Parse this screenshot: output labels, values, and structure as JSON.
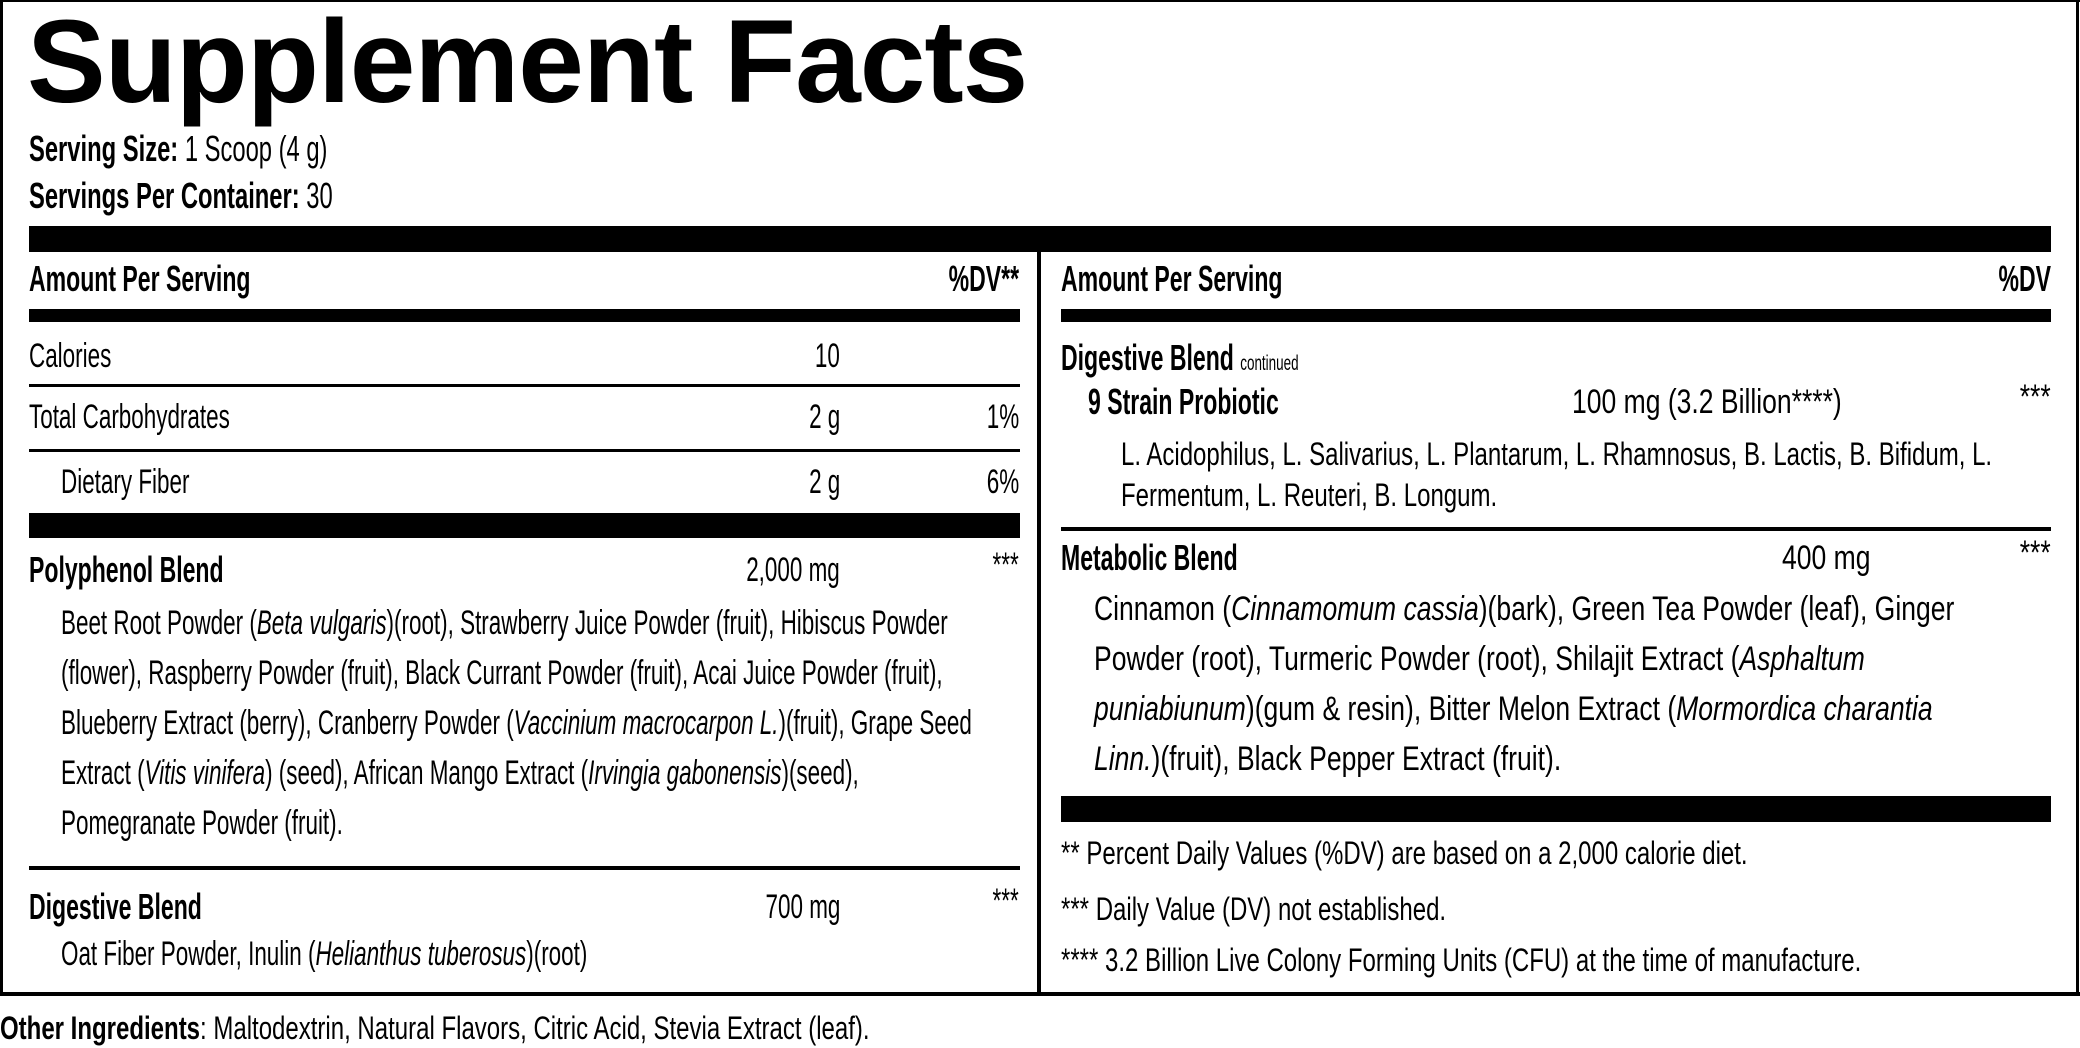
{
  "title": "Supplement Facts",
  "serving": {
    "size_label": "Serving Size:",
    "size_value": " 1 Scoop (4 g)",
    "per_container_label": "Servings Per Container:",
    "per_container_value": " 30"
  },
  "left": {
    "header_amount": "Amount Per Serving",
    "header_dv": "%DV**",
    "nutrients": [
      {
        "name": "Calories",
        "amount": "10",
        "dv": ""
      },
      {
        "name": "Total Carbohydrates",
        "amount": "2 g",
        "dv": "1%"
      },
      {
        "name": "Dietary Fiber",
        "amount": "2 g",
        "dv": "6%"
      }
    ],
    "polyphenol": {
      "name": "Polyphenol Blend",
      "amount": "2,000 mg",
      "dv": "***",
      "ingredients": [
        {
          "t": "Beet Root Powder ("
        },
        {
          "t": "Beta vulgaris",
          "i": true
        },
        {
          "t": ")(root), Strawberry Juice Powder (fruit), Hibiscus Powder (flower), Raspberry Powder (fruit), Black Currant Powder (fruit), Acai Juice Powder (fruit), Blueberry Extract (berry), Cranberry Powder ("
        },
        {
          "t": "Vaccinium macrocarpon L.",
          "i": true
        },
        {
          "t": ")(fruit), Grape Seed Extract ("
        },
        {
          "t": "Vitis vinifera",
          "i": true
        },
        {
          "t": ")  (seed), African Mango Extract ("
        },
        {
          "t": "Irvingia gabonensis",
          "i": true
        },
        {
          "t": ")(seed), Pomegranate Powder (fruit)."
        }
      ]
    },
    "digestive": {
      "name": "Digestive Blend",
      "amount": "700 mg",
      "dv": "***",
      "ingredients": [
        {
          "t": "Oat Fiber Powder, Inulin ("
        },
        {
          "t": "Helianthus tuberosus",
          "i": true
        },
        {
          "t": ")(root)"
        }
      ]
    }
  },
  "right": {
    "header_amount": "Amount Per Serving",
    "header_dv": "%DV",
    "digestive_cont": {
      "name": "Digestive Blend",
      "note": "continued"
    },
    "probiotic": {
      "name": "9 Strain Probiotic",
      "amount": "100 mg (3.2 Billion****)",
      "dv": "***",
      "ingredients": [
        {
          "t": "L. Acidophilus, L. Salivarius, L. Plantarum, L. Rhamnosus, B. Lactis, B. Bifidum, L. Fermentum, L. Reuteri, B. Longum."
        }
      ]
    },
    "metabolic": {
      "name": "Metabolic Blend",
      "amount": "400 mg",
      "dv": "***",
      "ingredients": [
        {
          "t": "Cinnamon ("
        },
        {
          "t": "Cinnamomum cassia",
          "i": true
        },
        {
          "t": ")(bark), Green Tea Powder (leaf), Ginger Powder (root), Turmeric Powder (root), Shilajit Extract ("
        },
        {
          "t": "Asphaltum puniabiunum",
          "i": true
        },
        {
          "t": ")(gum & resin), Bitter Melon Extract ("
        },
        {
          "t": "Mormordica charantia Linn.",
          "i": true
        },
        {
          "t": ")(fruit), Black Pepper Extract (fruit)."
        }
      ]
    },
    "footnotes": [
      "** Percent Daily Values (%DV) are based on a 2,000 calorie diet.",
      "*** Daily Value (DV) not established.",
      "**** 3.2 Billion Live Colony Forming Units (CFU) at the time of manufacture."
    ]
  },
  "other_ingredients": {
    "label": "Other Ingredients",
    "value": ": Maltodextrin, Natural Flavors, Citric Acid, Stevia Extract (leaf)."
  },
  "colors": {
    "ink": "#000000",
    "background": "#ffffff"
  }
}
